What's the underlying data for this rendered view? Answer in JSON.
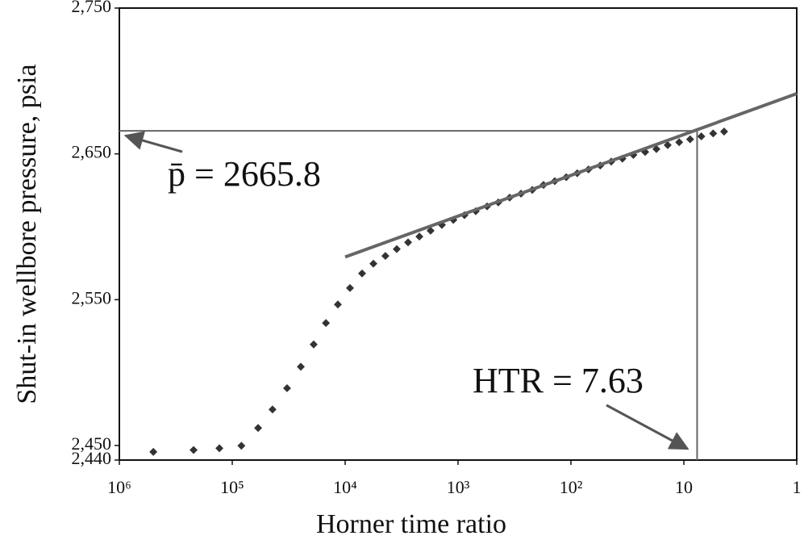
{
  "chart_data": {
    "type": "scatter",
    "x_label": "Horner time ratio",
    "y_label": "Shut-in wellbore pressure, psia",
    "x_log": true,
    "xlim": [
      1000000,
      1
    ],
    "ylim": [
      2440,
      2750
    ],
    "xticks": [
      {
        "value": 1000000,
        "label": "10⁶"
      },
      {
        "value": 100000,
        "label": "10⁵"
      },
      {
        "value": 10000,
        "label": "10⁴"
      },
      {
        "value": 1000,
        "label": "10³"
      },
      {
        "value": 100,
        "label": "10²"
      },
      10,
      1
    ],
    "yticks": [
      {
        "value": 2750,
        "label": "2,750"
      },
      {
        "value": 2650,
        "label": "2,650"
      },
      {
        "value": 2550,
        "label": "2,550"
      },
      {
        "value": 2450,
        "label": "2,450"
      },
      {
        "value": 2440,
        "label": "2,440"
      }
    ],
    "series": [
      {
        "color": "#333333",
        "x": [
          500000,
          220000,
          130000,
          83000,
          59000,
          44000,
          32700,
          24700,
          19000,
          14800,
          11600,
          9060,
          7080,
          5620,
          4400,
          3490,
          2770,
          2200,
          1750,
          1390,
          1100,
          877,
          697,
          553,
          440,
          349,
          277,
          220,
          175,
          139,
          110,
          88,
          70,
          55,
          44,
          35,
          28,
          22,
          17.5,
          13.9,
          11,
          8.8,
          7.0,
          5.5,
          4.4
        ],
        "values": [
          2445.6,
          2446.9,
          2448.1,
          2449.8,
          2462,
          2474.7,
          2489.3,
          2504,
          2519.3,
          2534,
          2546.7,
          2558,
          2568,
          2574.7,
          2580,
          2584.7,
          2589.3,
          2593.3,
          2597.3,
          2601.3,
          2604.7,
          2608,
          2610.7,
          2614,
          2616.7,
          2620,
          2622.7,
          2625.3,
          2628.7,
          2631.3,
          2634,
          2636.7,
          2639.3,
          2642,
          2644.7,
          2646.7,
          2649.3,
          2651.3,
          2653.3,
          2656,
          2658,
          2660,
          2662,
          2664,
          2665.3
        ]
      }
    ],
    "fit_line": {
      "color": "#666666",
      "x": [
        10000,
        1
      ],
      "values": [
        2579.3,
        2691.3
      ]
    },
    "annotations": [
      {
        "text": "p̄ = 2665.8",
        "value": 2665.8
      },
      {
        "text": "HTR = 7.63",
        "value": 7.63
      }
    ]
  }
}
